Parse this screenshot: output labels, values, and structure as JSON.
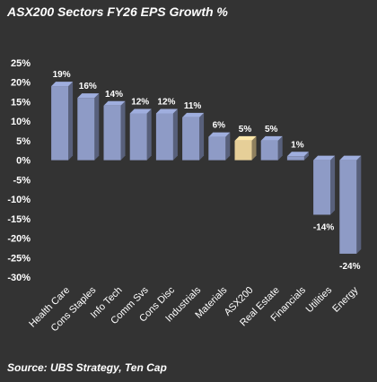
{
  "chart_data": {
    "type": "bar",
    "title": "ASX200 Sectors FY26 EPS Growth %",
    "source": "Source: UBS Strategy, Ten Cap",
    "categories": [
      "Health Care",
      "Cons Staples",
      "Info Tech",
      "Comm Svs",
      "Cons Disc",
      "Industrials",
      "Materials",
      "ASX200",
      "Real Estate",
      "Financials",
      "Utilities",
      "Energy"
    ],
    "values": [
      19,
      16,
      14,
      12,
      12,
      11,
      6,
      5,
      5,
      1,
      -14,
      -24
    ],
    "value_labels": [
      "19%",
      "16%",
      "14%",
      "12%",
      "12%",
      "11%",
      "6%",
      "5%",
      "5%",
      "1%",
      "-14%",
      "-24%"
    ],
    "y_ticks": [
      25,
      20,
      15,
      10,
      5,
      0,
      -5,
      -10,
      -15,
      -20,
      -25,
      -30
    ],
    "y_tick_labels": [
      "25%",
      "20%",
      "15%",
      "10%",
      "5%",
      "0%",
      "-5%",
      "-10%",
      "-15%",
      "-20%",
      "-25%",
      "-30%"
    ],
    "ylim": [
      -30,
      25
    ],
    "grid": false,
    "legend": "none",
    "colors": {
      "background": "#333333",
      "bar": "#8e9bc6",
      "highlight_bar": "#e6cf98",
      "highlight_category": "ASX200"
    }
  }
}
